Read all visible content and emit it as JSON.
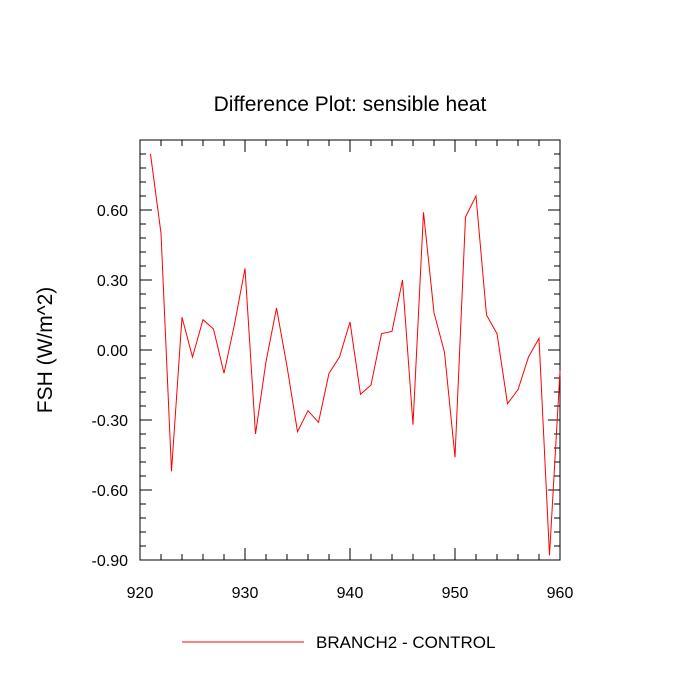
{
  "chart_data": {
    "type": "line",
    "title": "Difference Plot: sensible heat",
    "xlabel": "",
    "ylabel": "FSH  (W/m^2)",
    "xlim": [
      920,
      960
    ],
    "ylim": [
      -0.9,
      0.9
    ],
    "x_ticks": [
      920,
      930,
      940,
      950,
      960
    ],
    "x_tick_labels": [
      "920",
      "930",
      "940",
      "950",
      "960"
    ],
    "y_ticks": [
      -0.9,
      -0.6,
      -0.3,
      0.0,
      0.3,
      0.6
    ],
    "y_tick_labels": [
      "-0.90",
      "-0.60",
      "-0.30",
      "0.00",
      "0.30",
      "0.60"
    ],
    "grid": false,
    "legend_position": "bottom",
    "series": [
      {
        "name": "BRANCH2 - CONTROL",
        "color": "#ff0000",
        "x": [
          921,
          922,
          923,
          924,
          925,
          926,
          927,
          928,
          929,
          930,
          931,
          932,
          933,
          934,
          935,
          936,
          937,
          938,
          939,
          940,
          941,
          942,
          943,
          944,
          945,
          946,
          947,
          948,
          949,
          950,
          951,
          952,
          953,
          954,
          955,
          956,
          957,
          958,
          959,
          960
        ],
        "y": [
          0.84,
          0.5,
          -0.52,
          0.14,
          -0.03,
          0.13,
          0.09,
          -0.1,
          0.11,
          0.35,
          -0.36,
          -0.05,
          0.18,
          -0.07,
          -0.35,
          -0.26,
          -0.31,
          -0.1,
          -0.03,
          0.12,
          -0.19,
          -0.15,
          0.07,
          0.08,
          0.3,
          -0.32,
          0.59,
          0.16,
          -0.01,
          -0.46,
          0.57,
          0.66,
          0.15,
          0.07,
          -0.23,
          -0.17,
          -0.03,
          0.05,
          -0.88,
          -0.09
        ]
      }
    ]
  }
}
